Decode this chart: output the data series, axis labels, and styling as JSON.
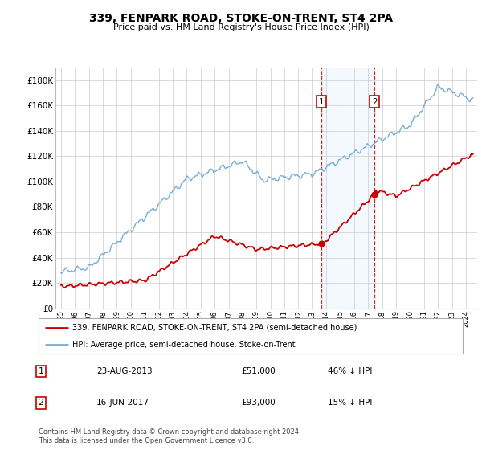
{
  "title": "339, FENPARK ROAD, STOKE-ON-TRENT, ST4 2PA",
  "subtitle": "Price paid vs. HM Land Registry's House Price Index (HPI)",
  "ylim": [
    0,
    190000
  ],
  "yticks": [
    0,
    20000,
    40000,
    60000,
    80000,
    100000,
    120000,
    140000,
    160000,
    180000
  ],
  "ytick_labels": [
    "£0",
    "£20K",
    "£40K",
    "£60K",
    "£80K",
    "£100K",
    "£120K",
    "£140K",
    "£160K",
    "£180K"
  ],
  "hpi_color": "#7aadd4",
  "price_color": "#cc0000",
  "sale1_year": 2013.65,
  "sale2_year": 2017.46,
  "sale1_price_val": 51000,
  "sale2_price_val": 93000,
  "sale1_hpi_val": 95000,
  "sale2_hpi_val": 110000,
  "sale1_date": "23-AUG-2013",
  "sale1_price": "£51,000",
  "sale1_hpi": "46% ↓ HPI",
  "sale2_date": "16-JUN-2017",
  "sale2_price": "£93,000",
  "sale2_hpi": "15% ↓ HPI",
  "legend_price_label": "339, FENPARK ROAD, STOKE-ON-TRENT, ST4 2PA (semi-detached house)",
  "legend_hpi_label": "HPI: Average price, semi-detached house, Stoke-on-Trent",
  "footnote": "Contains HM Land Registry data © Crown copyright and database right 2024.\nThis data is licensed under the Open Government Licence v3.0.",
  "grid_color": "#cccccc",
  "highlight_color": "#ddeeff"
}
